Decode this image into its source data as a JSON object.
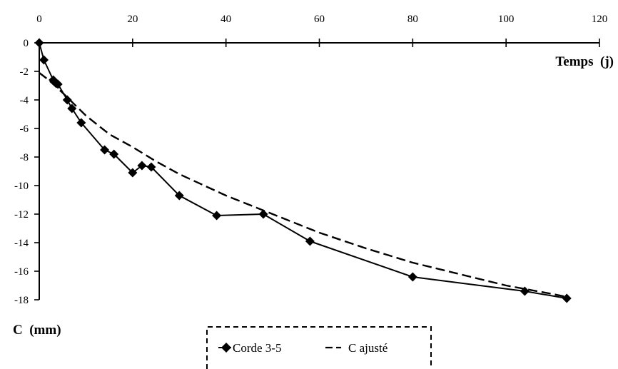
{
  "chart_data": {
    "type": "line",
    "xlabel": "Temps  (j)",
    "ylabel": "C  (mm)",
    "xlim": [
      0,
      120
    ],
    "ylim": [
      -18,
      0
    ],
    "x_ticks": [
      "0",
      "20",
      "40",
      "60",
      "80",
      "100",
      "120"
    ],
    "y_ticks": [
      "0",
      "-2",
      "-4",
      "-6",
      "-8",
      "-10",
      "-12",
      "-14",
      "-16",
      "-18"
    ],
    "x_axis_position": "top",
    "grid": false,
    "legend_position": "bottom-center",
    "series": [
      {
        "name": "Corde 3-5",
        "style": "solid-diamond",
        "color": "#000000",
        "x": [
          0,
          1,
          3,
          4,
          6,
          7,
          9,
          14,
          16,
          20,
          22,
          24,
          30,
          38,
          48,
          58,
          80,
          104,
          113
        ],
        "y": [
          0,
          -1.2,
          -2.6,
          -2.9,
          -4.0,
          -4.6,
          -5.6,
          -7.5,
          -7.8,
          -9.1,
          -8.6,
          -8.7,
          -10.7,
          -12.1,
          -12.0,
          -13.9,
          -16.4,
          -17.4,
          -17.9
        ]
      },
      {
        "name": "C ajusté",
        "style": "dashed",
        "color": "#000000",
        "x": [
          0,
          2,
          5,
          10,
          15,
          20,
          25,
          30,
          40,
          50,
          60,
          70,
          80,
          90,
          100,
          110,
          113
        ],
        "y": [
          -2.1,
          -2.6,
          -3.5,
          -5.1,
          -6.4,
          -7.3,
          -8.3,
          -9.2,
          -10.7,
          -12.0,
          -13.3,
          -14.4,
          -15.4,
          -16.2,
          -17.0,
          -17.6,
          -17.8
        ]
      }
    ]
  }
}
